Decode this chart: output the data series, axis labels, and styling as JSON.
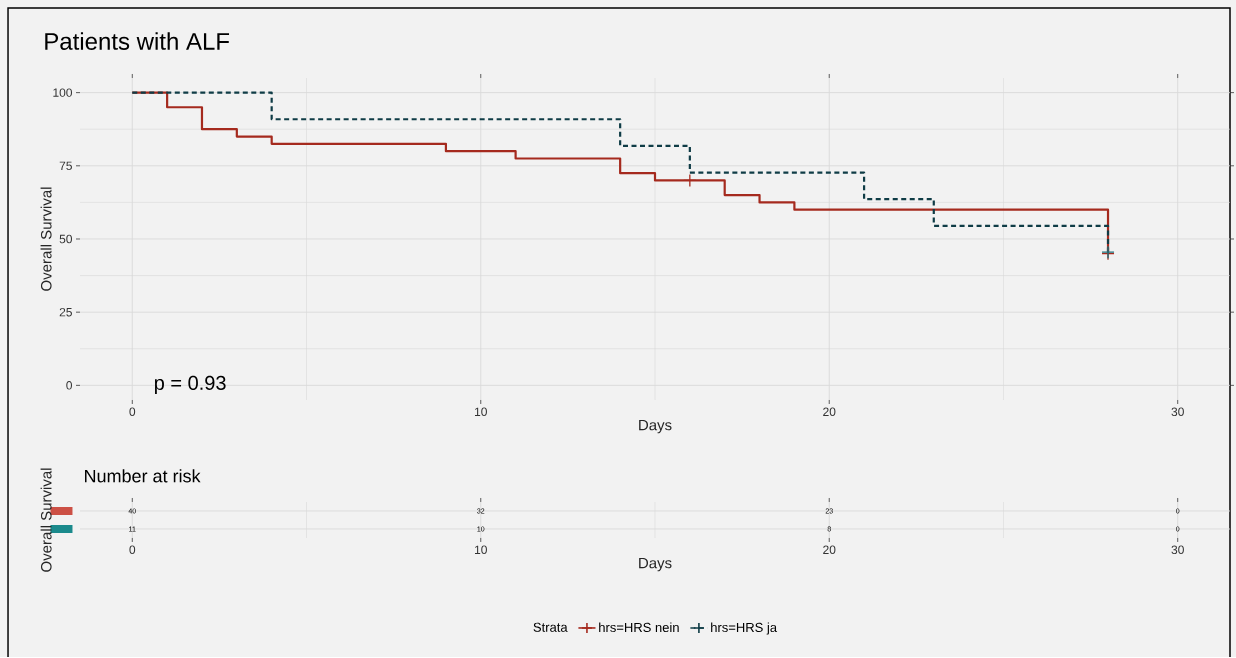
{
  "chart_data": [
    {
      "type": "step",
      "title": "Patients with ALF",
      "xlabel": "Days",
      "ylabel": "Overall Survival",
      "legend_title": "Strata",
      "legend": "bottom",
      "grid": true,
      "xlim": [
        -1.5,
        31.5
      ],
      "ylim": [
        -5,
        105
      ],
      "xticks": [
        0,
        10,
        20,
        30
      ],
      "yticks": [
        0,
        25,
        50,
        75,
        100
      ],
      "annotations": [
        "p = 0.93"
      ],
      "series": [
        {
          "name": "hrs=HRS nein",
          "color": "#a52a1e",
          "line_style": "solid",
          "x": [
            0,
            1,
            2,
            3,
            4,
            9,
            11,
            14,
            15,
            17,
            18,
            19,
            28
          ],
          "values": [
            100,
            95,
            87.5,
            85,
            82.5,
            80,
            77.5,
            72.5,
            70,
            65,
            62.5,
            60,
            45
          ]
        },
        {
          "name": "hrs=HRS ja",
          "color": "#0f3c46",
          "line_style": "dashed",
          "x": [
            0,
            4,
            14,
            16,
            21,
            23,
            28
          ],
          "values": [
            100,
            90.9,
            81.8,
            72.7,
            63.6,
            54.5,
            45.5
          ]
        },
        {
          "type": "scatter",
          "color": "#a52a1e",
          "marker": "cross",
          "x": [
            16,
            28
          ],
          "values": [
            70,
            45
          ]
        },
        {
          "type": "scatter",
          "color": "#1e6f7a",
          "marker": "cross",
          "x": [
            28
          ],
          "values": [
            45.5
          ]
        }
      ]
    },
    {
      "type": "other",
      "title": "Number at risk",
      "xlabel": "Days",
      "ylabel": "Overall Survival",
      "data_labels": true,
      "categories": [
        "0",
        "10",
        "20",
        "30"
      ],
      "series": [
        {
          "color": "#cc5045",
          "values": [
            40,
            32,
            23,
            0
          ]
        },
        {
          "color": "#1b8a8c",
          "values": [
            11,
            10,
            8,
            0
          ]
        }
      ]
    }
  ]
}
